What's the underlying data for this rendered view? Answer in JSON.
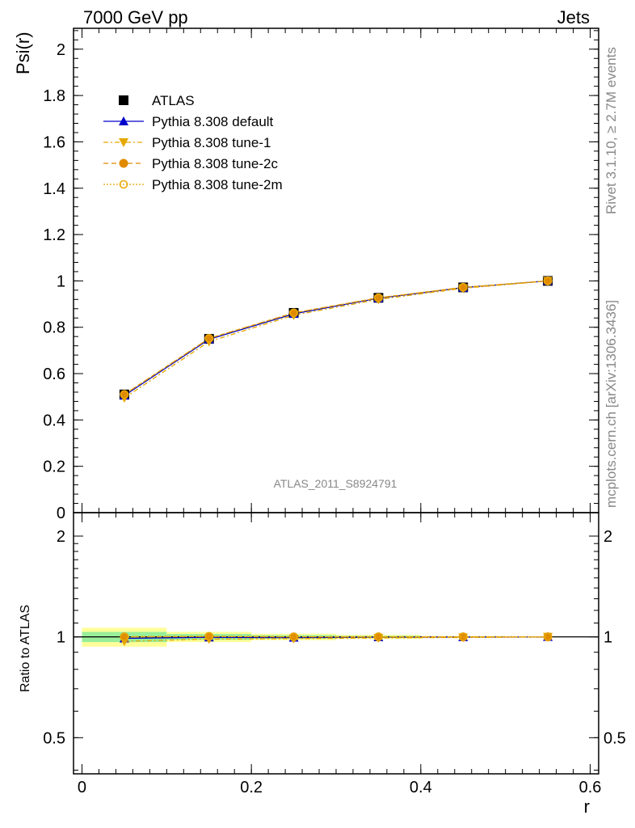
{
  "header": {
    "left": "7000 GeV pp",
    "right": "Jets"
  },
  "side_text": {
    "rivet": "Rivet 3.1.10, ≥ 2.7M events",
    "mcplots": "mcplots.cern.ch [arXiv:1306.3436]"
  },
  "watermark": "ATLAS_2011_S8924791",
  "chart_data": [
    {
      "type": "line",
      "panel": "main",
      "ylabel": "Psi(r)",
      "xlim": [
        -0.01,
        0.61
      ],
      "ylim": [
        0,
        2.09
      ],
      "yticks": [
        0,
        0.2,
        0.4,
        0.6,
        0.8,
        1,
        1.2,
        1.4,
        1.6,
        1.8,
        2
      ],
      "ytick_labels": [
        "0",
        "0.2",
        "0.4",
        "0.6",
        "0.8",
        "1",
        "1.2",
        "1.4",
        "1.6",
        "1.8",
        "2"
      ],
      "x": [
        0.05,
        0.15,
        0.25,
        0.35,
        0.45,
        0.55
      ],
      "series": [
        {
          "name": "ATLAS",
          "values": [
            0.51,
            0.75,
            0.862,
            0.927,
            0.972,
            1.0
          ],
          "color": "#000000",
          "style": "data"
        },
        {
          "name": "Pythia 8.308 default",
          "values": [
            0.505,
            0.748,
            0.858,
            0.925,
            0.971,
            1.0
          ],
          "color": "#0000cc",
          "style": "solid-triangle"
        },
        {
          "name": "Pythia 8.308 tune-1",
          "values": [
            0.495,
            0.738,
            0.852,
            0.92,
            0.968,
            1.0
          ],
          "color": "#e6a800",
          "style": "dashdot-triangle-down"
        },
        {
          "name": "Pythia 8.308 tune-2c",
          "values": [
            0.51,
            0.752,
            0.862,
            0.927,
            0.972,
            1.0
          ],
          "color": "#e08a00",
          "style": "dashed-circle"
        },
        {
          "name": "Pythia 8.308 tune-2m",
          "values": [
            0.51,
            0.752,
            0.862,
            0.927,
            0.972,
            1.0
          ],
          "color": "#e6a800",
          "style": "dotted-open-circle"
        }
      ],
      "legend": "top-left"
    },
    {
      "type": "line",
      "panel": "ratio",
      "ylabel": "Ratio to ATLAS",
      "xlabel": "r",
      "xticks": [
        0,
        0.2,
        0.4,
        0.6
      ],
      "xtick_labels": [
        "0",
        "0.2",
        "0.4",
        "0.6"
      ],
      "ylim": [
        0.39,
        2.35
      ],
      "yscale": "log",
      "yticks": [
        0.5,
        1,
        2
      ],
      "ytick_labels": [
        "0.5",
        "1",
        "2"
      ],
      "bands": [
        {
          "x0": 0.0,
          "x1": 0.1,
          "inner": [
            0.965,
            1.035
          ],
          "outer": [
            0.935,
            1.065
          ]
        },
        {
          "x0": 0.1,
          "x1": 0.2,
          "inner": [
            0.98,
            1.02
          ],
          "outer": [
            0.965,
            1.035
          ]
        },
        {
          "x0": 0.2,
          "x1": 0.3,
          "inner": [
            0.988,
            1.012
          ],
          "outer": [
            0.978,
            1.022
          ]
        },
        {
          "x0": 0.3,
          "x1": 0.4,
          "inner": [
            0.993,
            1.007
          ],
          "outer": [
            0.986,
            1.014
          ]
        },
        {
          "x0": 0.4,
          "x1": 0.5,
          "inner": [
            0.997,
            1.003
          ],
          "outer": [
            0.994,
            1.006
          ]
        },
        {
          "x0": 0.5,
          "x1": 0.6,
          "inner": [
            0.999,
            1.001
          ],
          "outer": [
            0.998,
            1.002
          ]
        }
      ],
      "x": [
        0.05,
        0.15,
        0.25,
        0.35,
        0.45,
        0.55
      ],
      "series": [
        {
          "name": "Pythia 8.308 default",
          "values": [
            0.99,
            0.997,
            0.995,
            0.998,
            0.999,
            1.0
          ],
          "color": "#0000cc"
        },
        {
          "name": "Pythia 8.308 tune-1",
          "values": [
            0.97,
            0.985,
            0.988,
            0.993,
            0.996,
            1.0
          ],
          "color": "#e6a800"
        },
        {
          "name": "Pythia 8.308 tune-2c",
          "values": [
            1.0,
            1.003,
            1.0,
            1.0,
            1.0,
            1.0
          ],
          "color": "#e08a00"
        },
        {
          "name": "Pythia 8.308 tune-2m",
          "values": [
            1.0,
            1.003,
            1.0,
            1.0,
            1.0,
            1.0
          ],
          "color": "#e6a800"
        }
      ]
    }
  ]
}
